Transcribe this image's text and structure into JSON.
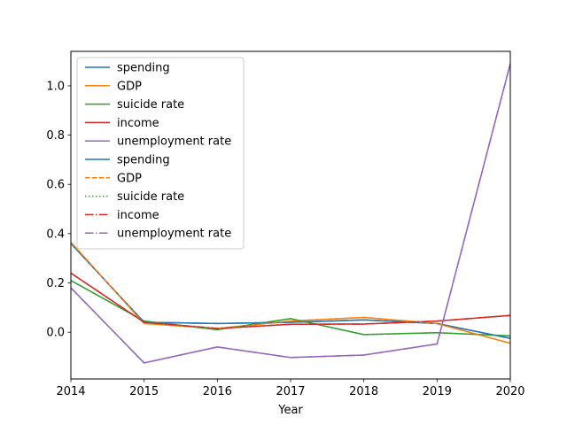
{
  "chart_data": {
    "type": "line",
    "title": "",
    "xlabel": "Year",
    "ylabel": "",
    "x": [
      2014,
      2015,
      2016,
      2017,
      2018,
      2019,
      2020
    ],
    "xlim": [
      2014,
      2020
    ],
    "ylim": [
      -0.19,
      1.14
    ],
    "xticks": [
      "2014",
      "2015",
      "2016",
      "2017",
      "2018",
      "2019",
      "2020"
    ],
    "yticks": [
      0.0,
      0.2,
      0.4,
      0.6,
      0.8,
      1.0
    ],
    "ytick_labels": [
      "0.0",
      "0.2",
      "0.4",
      "0.6",
      "0.8",
      "1.0"
    ],
    "grid": false,
    "legend_position": "top-left",
    "series": [
      {
        "name": "spending",
        "color": "#1f77b4",
        "style": "solid",
        "values": [
          0.36,
          0.04,
          0.035,
          0.04,
          0.05,
          0.035,
          -0.025
        ]
      },
      {
        "name": "GDP",
        "color": "#ff7f0e",
        "style": "solid",
        "values": [
          0.365,
          0.035,
          0.015,
          0.045,
          0.06,
          0.035,
          -0.045
        ]
      },
      {
        "name": "suicide rate",
        "color": "#2ca02c",
        "style": "solid",
        "values": [
          0.21,
          0.045,
          0.01,
          0.055,
          -0.01,
          -0.002,
          -0.015
        ]
      },
      {
        "name": "income",
        "color": "#d62728",
        "style": "solid",
        "values": [
          0.24,
          0.04,
          0.015,
          0.032,
          0.033,
          0.045,
          0.068
        ]
      },
      {
        "name": "unemployment rate",
        "color": "#9467bd",
        "style": "solid",
        "values": [
          0.18,
          -0.125,
          -0.06,
          -0.103,
          -0.093,
          -0.048,
          1.09
        ]
      },
      {
        "name": "spending",
        "color": "#1f77b4",
        "style": "solid",
        "values": [
          0.36,
          0.04,
          0.035,
          0.04,
          0.05,
          0.035,
          -0.025
        ]
      },
      {
        "name": "GDP",
        "color": "#ff7f0e",
        "style": "dashed",
        "values": [
          0.365,
          0.035,
          0.015,
          0.045,
          0.06,
          0.035,
          -0.045
        ]
      },
      {
        "name": "suicide rate",
        "color": "#2ca02c",
        "style": "dotted",
        "values": [
          0.21,
          0.045,
          0.01,
          0.055,
          -0.01,
          -0.002,
          -0.015
        ]
      },
      {
        "name": "income",
        "color": "#d62728",
        "style": "dashdot",
        "values": [
          0.24,
          0.04,
          0.015,
          0.032,
          0.033,
          0.045,
          0.068
        ]
      },
      {
        "name": "unemployment rate",
        "color": "#9467bd",
        "style": "dashdot",
        "values": [
          0.18,
          -0.125,
          -0.06,
          -0.103,
          -0.093,
          -0.048,
          1.09
        ]
      }
    ]
  }
}
